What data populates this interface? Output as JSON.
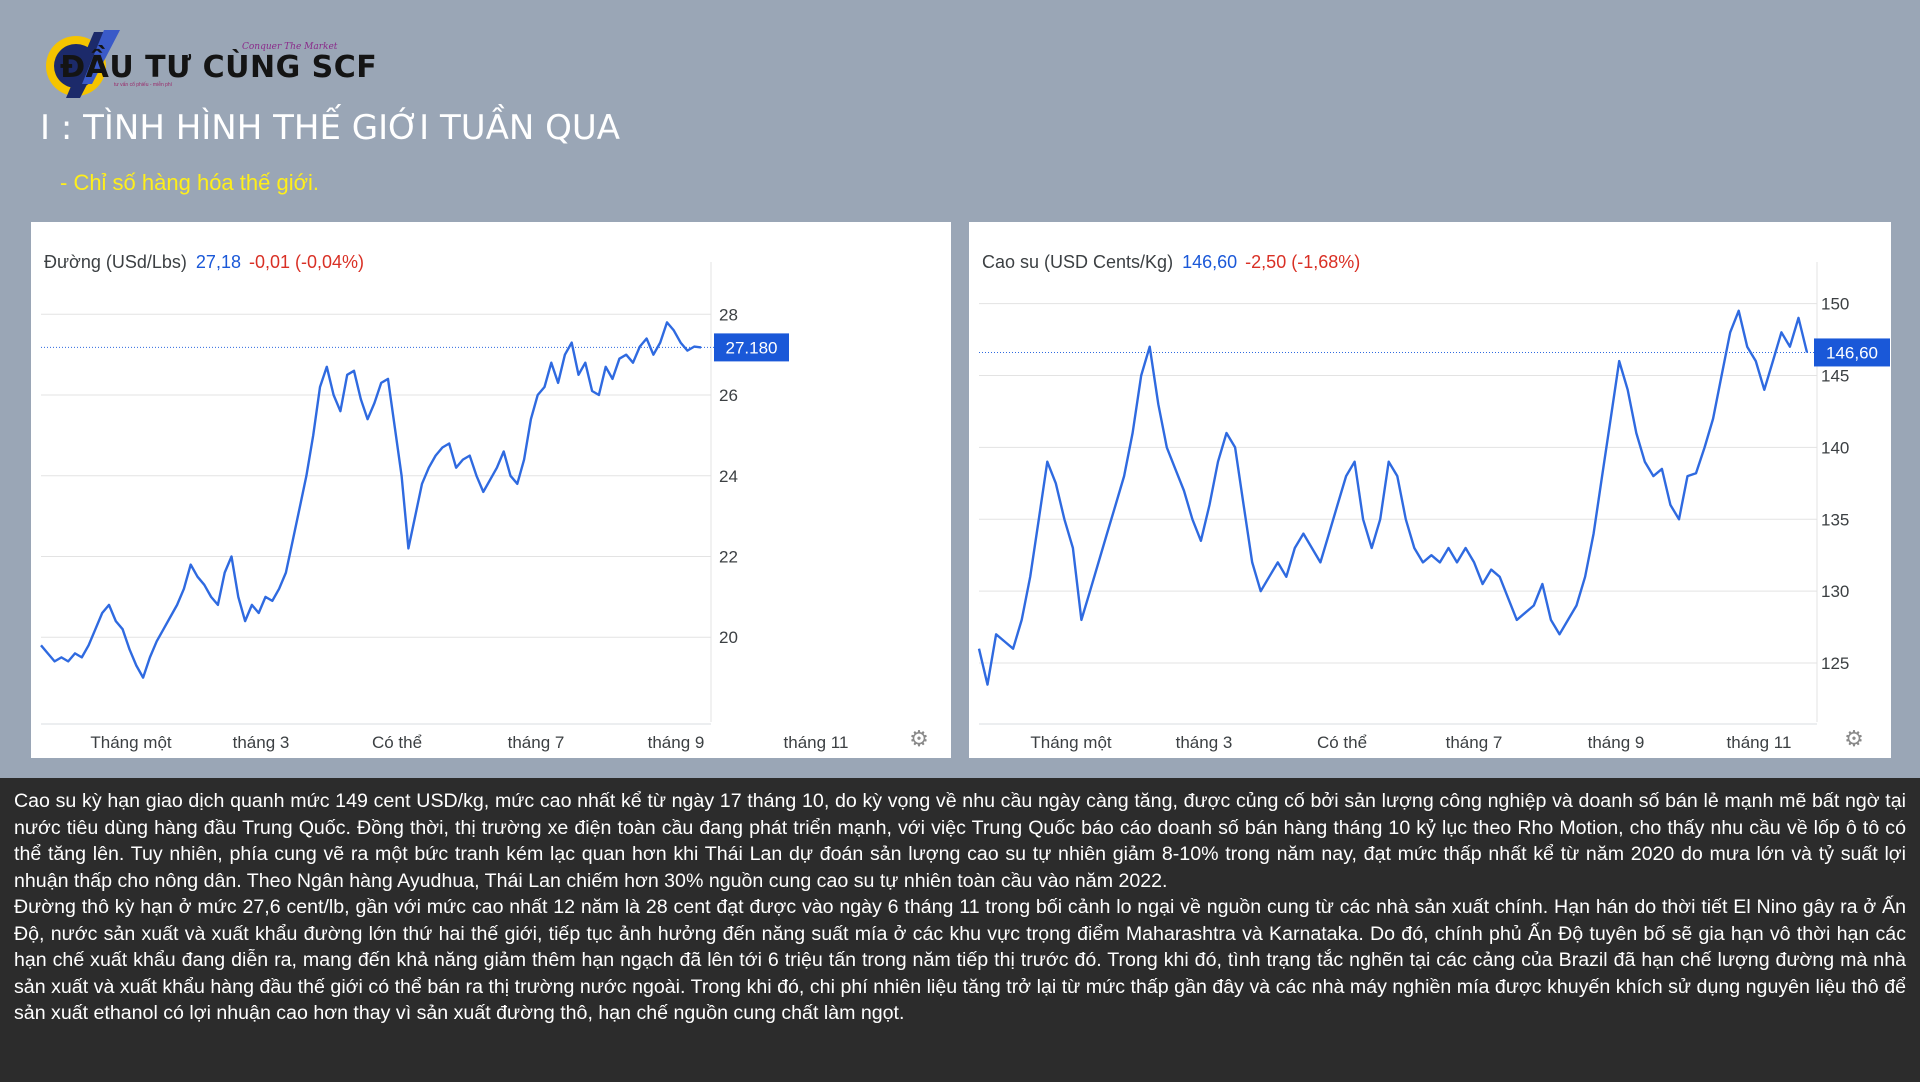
{
  "logo": {
    "text": "ĐẦU TƯ CÙNG SCF",
    "tagline": "Conquer The Market",
    "subline": "tư vấn cổ phiếu - miễn phí"
  },
  "heading": "I : TÌNH HÌNH THẾ GIỚI TUẦN QUA",
  "subheading": "- Chỉ số hàng hóa thế giới.",
  "colors": {
    "background": "#9aa6b6",
    "line": "#2f6ae0",
    "price_text": "#1a58d8",
    "change_text": "#d93025",
    "badge": "#1a58d8",
    "subheading": "#ffef1a",
    "text_block": "#2c2c2c"
  },
  "chart_data": [
    {
      "type": "line",
      "title": "Đường (USd/Lbs)",
      "price": "27,18",
      "change": "-0,01 (-0,04%)",
      "current_label": "27.180",
      "current_value": 27.18,
      "x_ticks": [
        "Tháng một",
        "tháng 3",
        "Có thể",
        "tháng 7",
        "tháng 9",
        "tháng 11"
      ],
      "y_ticks": [
        20,
        22,
        24,
        26,
        28
      ],
      "ylim": [
        17.9,
        28.8
      ],
      "grid": true,
      "series": [
        {
          "values": [
            19.8,
            19.6,
            19.4,
            19.5,
            19.4,
            19.6,
            19.5,
            19.8,
            20.2,
            20.6,
            20.8,
            20.4,
            20.2,
            19.7,
            19.3,
            19.0,
            19.5,
            19.9,
            20.2,
            20.5,
            20.8,
            21.2,
            21.8,
            21.5,
            21.3,
            21.0,
            20.8,
            21.6,
            22.0,
            21.0,
            20.4,
            20.8,
            20.6,
            21.0,
            20.9,
            21.2,
            21.6,
            22.4,
            23.2,
            24.0,
            25.0,
            26.2,
            26.7,
            26.0,
            25.6,
            26.5,
            26.6,
            25.9,
            25.4,
            25.8,
            26.3,
            26.4,
            25.2,
            24.0,
            22.2,
            23.0,
            23.8,
            24.2,
            24.5,
            24.7,
            24.8,
            24.2,
            24.4,
            24.5,
            24.0,
            23.6,
            23.9,
            24.2,
            24.6,
            24.0,
            23.8,
            24.4,
            25.4,
            26.0,
            26.2,
            26.8,
            26.3,
            27.0,
            27.3,
            26.5,
            26.8,
            26.1,
            26.0,
            26.7,
            26.4,
            26.9,
            27.0,
            26.8,
            27.2,
            27.4,
            27.0,
            27.3,
            27.8,
            27.6,
            27.3,
            27.1,
            27.2,
            27.18
          ]
        }
      ]
    },
    {
      "type": "line",
      "title": "Cao su (USD Cents/Kg)",
      "price": "146,60",
      "change": "-2,50 (-1,68%)",
      "current_label": "146,60",
      "current_value": 146.6,
      "x_ticks": [
        "Tháng một",
        "tháng 3",
        "Có thể",
        "tháng 7",
        "tháng 9",
        "tháng 11"
      ],
      "y_ticks": [
        125,
        130,
        135,
        140,
        145,
        150
      ],
      "ylim": [
        120.9,
        151.5
      ],
      "grid": true,
      "series": [
        {
          "values": [
            126,
            123.5,
            127,
            126.5,
            126,
            128,
            131,
            135,
            139,
            137.5,
            135,
            133,
            128,
            130,
            132,
            134,
            136,
            138,
            141,
            145,
            147,
            143,
            140,
            138.5,
            137,
            135,
            133.5,
            136,
            139,
            141,
            140,
            136,
            132,
            130,
            131,
            132,
            131,
            133,
            134,
            133,
            132,
            134,
            136,
            138,
            139,
            135,
            133,
            135,
            139,
            138,
            135,
            133,
            132,
            132.5,
            132,
            133,
            132,
            133,
            132,
            130.5,
            131.5,
            131,
            129.5,
            128,
            128.5,
            129,
            130.5,
            128,
            127,
            128,
            129,
            131,
            134,
            138,
            142,
            146,
            144,
            141,
            139,
            138,
            138.5,
            136,
            135,
            138,
            138.2,
            140,
            142,
            145,
            148,
            149.5,
            147,
            146,
            144,
            146,
            148,
            147,
            149,
            146.6
          ]
        }
      ]
    }
  ],
  "article": {
    "paragraph1": "Cao su kỳ hạn giao dịch quanh mức 149 cent USD/kg, mức cao nhất kể từ ngày 17 tháng 10, do kỳ vọng về nhu cầu ngày càng tăng, được củng cố bởi sản lượng công nghiệp và doanh số bán lẻ mạnh mẽ bất ngờ tại nước tiêu dùng hàng đầu Trung Quốc. Đồng thời, thị trường xe điện toàn cầu đang phát triển mạnh, với việc Trung Quốc báo cáo doanh số bán hàng tháng 10 kỷ lục theo Rho Motion, cho thấy nhu cầu về lốp ô tô có thể tăng lên. Tuy nhiên, phía cung vẽ ra một bức tranh kém lạc quan hơn khi Thái Lan dự đoán sản lượng cao su tự nhiên giảm 8-10% trong năm nay, đạt mức thấp nhất kể từ năm 2020 do mưa lớn và tỷ suất lợi nhuận thấp cho nông dân. Theo Ngân hàng Ayudhua, Thái Lan chiếm hơn 30% nguồn cung cao su tự nhiên toàn cầu vào năm 2022.",
    "paragraph2": "Đường thô kỳ hạn ở mức 27,6 cent/lb, gần với mức cao nhất 12 năm là 28 cent đạt được vào ngày 6 tháng 11 trong bối cảnh lo ngại về nguồn cung từ các nhà sản xuất chính. Hạn hán do thời tiết El Nino gây ra ở Ấn Độ, nước sản xuất và xuất khẩu đường lớn thứ hai thế giới, tiếp tục ảnh hưởng đến năng suất mía ở các khu vực trọng điểm Maharashtra và Karnataka. Do đó, chính phủ Ấn Độ tuyên bố sẽ gia hạn vô thời hạn các hạn chế xuất khẩu đang diễn ra, mang đến khả năng giảm thêm hạn ngạch đã lên tới 6 triệu tấn trong năm tiếp thị trước đó. Trong khi đó, tình trạng tắc nghẽn tại các cảng của Brazil đã hạn chế lượng đường mà nhà sản xuất và xuất khẩu hàng đầu thế giới có thể bán ra thị trường nước ngoài. Trong khi đó, chi phí nhiên liệu tăng trở lại từ mức thấp gần đây và các nhà máy nghiền mía được khuyến khích sử dụng nguyên liệu thô để sản xuất ethanol có lợi nhuận cao hơn thay vì sản xuất đường thô, hạn chế nguồn cung chất làm ngọt."
  }
}
